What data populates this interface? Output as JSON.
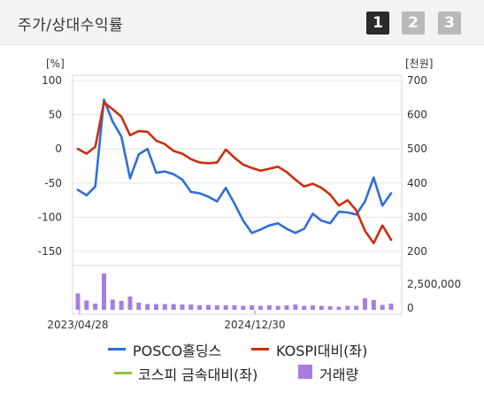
{
  "header": {
    "title": "주가/상대수익률",
    "tabs": [
      "1",
      "2",
      "3"
    ]
  },
  "chart_data": {
    "type": "line",
    "left_axis": {
      "unit_label": "[%]",
      "ticks": [
        100,
        50,
        0,
        -50,
        -100,
        -150
      ],
      "range": [
        -150,
        100
      ]
    },
    "right_axis": {
      "unit_label": "[천원]",
      "ticks": [
        700,
        600,
        500,
        400,
        300,
        200
      ],
      "range": [
        200,
        700
      ]
    },
    "volume_axis": {
      "ticks": [
        "2,500,000",
        "0"
      ],
      "range": [
        0,
        5000000
      ]
    },
    "x_tick_labels": [
      "2023/04/28",
      "2024/12/30"
    ],
    "series": [
      {
        "name": "POSCO홀딩스",
        "color": "#2f6fd6",
        "axis": "left",
        "values": [
          -60,
          -68,
          -55,
          72,
          40,
          18,
          -43,
          -8,
          0,
          -35,
          -33,
          -37,
          -45,
          -63,
          -65,
          -70,
          -77,
          -57,
          -80,
          -105,
          -123,
          -118,
          -112,
          -109,
          -117,
          -123,
          -117,
          -95,
          -105,
          -109,
          -92,
          -93,
          -96,
          -77,
          -42,
          -83,
          -65
        ]
      },
      {
        "name": "KOSPI대비(좌)",
        "color": "#cc2e0e",
        "axis": "left",
        "values": [
          0,
          -7,
          3,
          68,
          58,
          47,
          20,
          26,
          25,
          12,
          7,
          -3,
          -7,
          -15,
          -20,
          -21,
          -20,
          -1,
          -13,
          -23,
          -28,
          -32,
          -29,
          -26,
          -34,
          -45,
          -55,
          -51,
          -57,
          -67,
          -83,
          -75,
          -90,
          -120,
          -138,
          -112,
          -133
        ]
      },
      {
        "name": "코스피 금속대비(좌)",
        "color": "#8cc63f",
        "axis": "left",
        "values": []
      }
    ],
    "volume": {
      "name": "거래량",
      "color": "#a87de0",
      "values": [
        1850000,
        1050000,
        700000,
        4100000,
        1150000,
        1000000,
        1500000,
        800000,
        650000,
        650000,
        650000,
        650000,
        600000,
        600000,
        500000,
        550000,
        500000,
        500000,
        500000,
        450000,
        500000,
        450000,
        500000,
        450000,
        500000,
        600000,
        450000,
        500000,
        450000,
        400000,
        350000,
        450000,
        450000,
        1300000,
        1100000,
        550000,
        700000
      ]
    }
  },
  "legend": {
    "posco": "POSCO홀딩스",
    "kospi": "KOSPI대비(좌)",
    "metal": "코스피 금속대비(좌)",
    "volume": "거래량"
  }
}
